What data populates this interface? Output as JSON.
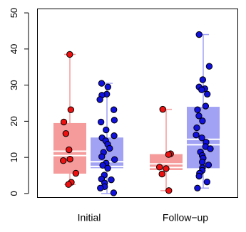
{
  "chart_data": {
    "type": "box",
    "categories": [
      "Initial",
      "Follow−up"
    ],
    "ylim": [
      -1,
      51
    ],
    "yticks": [
      0,
      10,
      20,
      30,
      40,
      50
    ],
    "xlabel": "",
    "ylabel": "",
    "title": "",
    "grid": false,
    "series": [
      {
        "color": "#f59b9b",
        "point_color": "#ee1111",
        "boxes": [
          {
            "category": "Initial",
            "min": 2.5,
            "q1": 5.5,
            "median": 10.5,
            "q3": 19.5,
            "max": 38.5,
            "mean": 11.7,
            "points": [
              38.5,
              23.2,
              19.8,
              16.6,
              12.1,
              9.5,
              9.1,
              5.6,
              3.1,
              2.5
            ]
          },
          {
            "category": "Follow−up",
            "min": 0.8,
            "q1": 6.5,
            "median": 7.2,
            "q3": 10.9,
            "max": 23.3,
            "mean": 8.2,
            "points": [
              23.3,
              11.0,
              10.8,
              7.3,
              6.9,
              5.4,
              0.8
            ]
          }
        ]
      },
      {
        "color": "#a2a2f5",
        "point_color": "#1111dd",
        "boxes": [
          {
            "category": "Initial",
            "min": 0.0,
            "q1": 7.0,
            "median": 7.5,
            "q3": 15.5,
            "max": 30.5,
            "mean": 8.8,
            "points": [
              30.5,
              29.5,
              27.5,
              27.2,
              26.0,
              23.2,
              20.3,
              19.8,
              17.6,
              16.0,
              15.4,
              14.6,
              13.6,
              12.5,
              11.4,
              10.2,
              9.4,
              8.4,
              7.8,
              7.0,
              5.1,
              4.0,
              3.8,
              2.9,
              1.9,
              1.5,
              0.2
            ]
          },
          {
            "category": "Follow−up",
            "min": 1.5,
            "q1": 7.0,
            "median": 13.5,
            "q3": 24.0,
            "max": 44.0,
            "mean": 15.0,
            "points": [
              44.0,
              35.2,
              31.5,
              29.5,
              29.0,
              28.7,
              27.5,
              24.2,
              23.2,
              21.5,
              20.1,
              18.2,
              16.2,
              15.4,
              14.2,
              13.0,
              12.4,
              11.5,
              10.5,
              9.8,
              8.7,
              7.9,
              7.1,
              6.4,
              5.6,
              4.8,
              3.2,
              1.5
            ]
          }
        ]
      }
    ]
  }
}
